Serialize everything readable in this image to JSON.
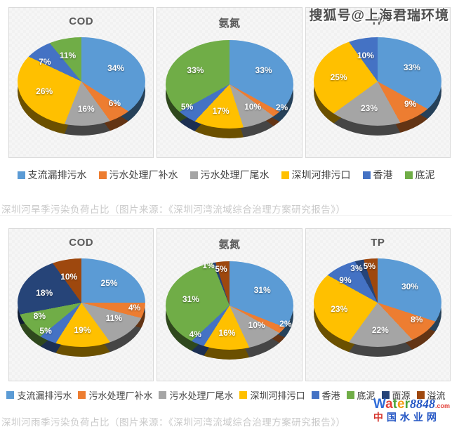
{
  "watermark_top": "搜狐号@上海君瑞环境",
  "palette": [
    "#5B9BD5",
    "#ED7D31",
    "#A5A5A5",
    "#FFC000",
    "#4472C4",
    "#70AD47",
    "#264478",
    "#9E480E"
  ],
  "sections": [
    {
      "caption": "深圳河旱季污染负荷占比（图片来源：《深圳河湾流域综合治理方案研究报告》）",
      "legend": [
        {
          "label": "支流漏排污水",
          "color": "#5B9BD5"
        },
        {
          "label": "污水处理厂补水",
          "color": "#ED7D31"
        },
        {
          "label": "污水处理厂尾水",
          "color": "#A5A5A5"
        },
        {
          "label": "深圳河排污口",
          "color": "#FFC000"
        },
        {
          "label": "香港",
          "color": "#4472C4"
        },
        {
          "label": "底泥",
          "color": "#70AD47"
        }
      ]
    },
    {
      "caption": "深圳河雨季污染负荷占比（图片来源：《深圳河湾流域综合治理方案研究报告》）",
      "legend": [
        {
          "label": "支流漏排污水",
          "color": "#5B9BD5"
        },
        {
          "label": "污水处理厂补水",
          "color": "#ED7D31"
        },
        {
          "label": "污水处理厂尾水",
          "color": "#A5A5A5"
        },
        {
          "label": "深圳河排污口",
          "color": "#FFC000"
        },
        {
          "label": "香港",
          "color": "#4472C4"
        },
        {
          "label": "底泥",
          "color": "#70AD47"
        },
        {
          "label": "面源",
          "color": "#264478"
        },
        {
          "label": "溢流",
          "color": "#9E480E"
        }
      ]
    }
  ],
  "chart_data": [
    {
      "type": "pie",
      "title": "COD",
      "group": "深圳河旱季污染负荷占比",
      "categories": [
        "支流漏排污水",
        "污水处理厂补水",
        "污水处理厂尾水",
        "深圳河排污口",
        "香港",
        "底泥"
      ],
      "values": [
        34,
        6,
        16,
        26,
        7,
        11
      ]
    },
    {
      "type": "pie",
      "title": "氨氮",
      "group": "深圳河旱季污染负荷占比",
      "categories": [
        "支流漏排污水",
        "污水处理厂补水",
        "污水处理厂尾水",
        "深圳河排污口",
        "香港",
        "底泥"
      ],
      "values": [
        33,
        2,
        10,
        17,
        5,
        33
      ]
    },
    {
      "type": "pie",
      "title": "TP",
      "group": "深圳河旱季污染负荷占比",
      "categories": [
        "支流漏排污水",
        "污水处理厂补水",
        "污水处理厂尾水",
        "深圳河排污口",
        "香港",
        "底泥"
      ],
      "values": [
        33,
        9,
        23,
        25,
        10,
        0
      ]
    },
    {
      "type": "pie",
      "title": "COD",
      "group": "深圳河雨季污染负荷占比",
      "categories": [
        "支流漏排污水",
        "污水处理厂补水",
        "污水处理厂尾水",
        "深圳河排污口",
        "香港",
        "底泥",
        "面源",
        "溢流"
      ],
      "values": [
        25,
        4,
        11,
        19,
        5,
        8,
        18,
        10
      ]
    },
    {
      "type": "pie",
      "title": "氨氮",
      "group": "深圳河雨季污染负荷占比",
      "categories": [
        "支流漏排污水",
        "污水处理厂补水",
        "污水处理厂尾水",
        "深圳河排污口",
        "香港",
        "底泥",
        "面源",
        "溢流"
      ],
      "values": [
        31,
        2,
        10,
        16,
        4,
        31,
        1,
        5
      ]
    },
    {
      "type": "pie",
      "title": "TP",
      "group": "深圳河雨季污染负荷占比",
      "categories": [
        "支流漏排污水",
        "污水处理厂补水",
        "污水处理厂尾水",
        "深圳河排污口",
        "香港",
        "底泥",
        "面源",
        "溢流"
      ],
      "values": [
        30,
        8,
        22,
        23,
        9,
        0,
        3,
        5
      ]
    }
  ],
  "logo": {
    "segments": [
      {
        "text": "W",
        "color": "#2e6bd9"
      },
      {
        "text": "a",
        "color": "#e23f38"
      },
      {
        "text": "t",
        "color": "#4ba43b"
      },
      {
        "text": "e",
        "color": "#f39c12"
      },
      {
        "text": "r",
        "color": "#4ba43b"
      },
      {
        "text": "8848",
        "color": "#2456c4",
        "style": "num"
      },
      {
        "text": ".com",
        "color": "#e23f38",
        "style": "dotcom"
      }
    ],
    "cn_segments": [
      {
        "text": "中",
        "color": "#d4342c"
      },
      {
        "text": "国水业网",
        "color": "#2456c4"
      }
    ]
  }
}
